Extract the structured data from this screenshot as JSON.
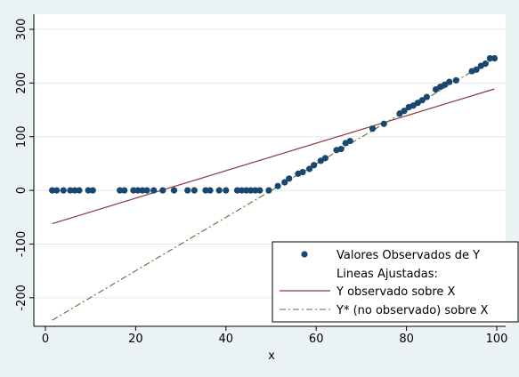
{
  "chart_data": {
    "type": "scatter",
    "xlabel": "x",
    "ylabel": "",
    "xlim": [
      0,
      100
    ],
    "ylim": [
      -250,
      300
    ],
    "x_ticks": [
      0,
      20,
      40,
      60,
      80,
      100
    ],
    "y_ticks": [
      -200,
      -100,
      0,
      100,
      200,
      300
    ],
    "x_tick_labels": [
      "0",
      "20",
      "40",
      "60",
      "80",
      "100"
    ],
    "y_tick_labels": [
      "-200",
      "-100",
      "0",
      "100",
      "200",
      "300"
    ],
    "grid": "horizontal",
    "legend_position": "bottom-right",
    "colors": {
      "background": "#eaf2f3",
      "plot_area": "#ffffff",
      "gridline": "#dfe8ea",
      "scatter": "#1a476f",
      "fit_observed": "#90353b",
      "fit_latent": "#55752f"
    },
    "series": [
      {
        "name": "Valores Observados de Y",
        "kind": "scatter",
        "points": [
          [
            1.5,
            0
          ],
          [
            2.5,
            0
          ],
          [
            4,
            0
          ],
          [
            5.5,
            0
          ],
          [
            6.5,
            0
          ],
          [
            7.5,
            0
          ],
          [
            9.5,
            0
          ],
          [
            10.5,
            0
          ],
          [
            16.5,
            0
          ],
          [
            17.5,
            0
          ],
          [
            19.5,
            0
          ],
          [
            20.5,
            0
          ],
          [
            21.5,
            0
          ],
          [
            22.5,
            0
          ],
          [
            24,
            0
          ],
          [
            26,
            0
          ],
          [
            28.5,
            0
          ],
          [
            31.5,
            0
          ],
          [
            33,
            0
          ],
          [
            35.5,
            0
          ],
          [
            36.5,
            0
          ],
          [
            38.5,
            0
          ],
          [
            40,
            0
          ],
          [
            42.5,
            0
          ],
          [
            43.5,
            0
          ],
          [
            44.5,
            0
          ],
          [
            45.5,
            0
          ],
          [
            46.5,
            0
          ],
          [
            47.5,
            0
          ],
          [
            49.5,
            0
          ],
          [
            51.5,
            8
          ],
          [
            53,
            15
          ],
          [
            54,
            22
          ],
          [
            56,
            31
          ],
          [
            57,
            34
          ],
          [
            58.5,
            40
          ],
          [
            59.5,
            47
          ],
          [
            61,
            55
          ],
          [
            62,
            60
          ],
          [
            64.5,
            75
          ],
          [
            65.5,
            77
          ],
          [
            66.5,
            88
          ],
          [
            67.5,
            92
          ],
          [
            72.5,
            115
          ],
          [
            75,
            124
          ],
          [
            78.5,
            143
          ],
          [
            79.5,
            148
          ],
          [
            80.5,
            155
          ],
          [
            81.5,
            158
          ],
          [
            82.5,
            163
          ],
          [
            83.5,
            168
          ],
          [
            84.5,
            174
          ],
          [
            86.5,
            188
          ],
          [
            87.5,
            193
          ],
          [
            88.5,
            197
          ],
          [
            89.5,
            202
          ],
          [
            91,
            205
          ],
          [
            94.5,
            222
          ],
          [
            95.5,
            225
          ],
          [
            96.5,
            232
          ],
          [
            97.5,
            236
          ],
          [
            98.5,
            246
          ],
          [
            99.5,
            246
          ]
        ]
      },
      {
        "name": "Y observado sobre X",
        "kind": "line",
        "points": [
          [
            1.5,
            -62
          ],
          [
            99.5,
            189
          ]
        ]
      },
      {
        "name": "Y* (no observado) sobre X",
        "kind": "dash-dot",
        "points": [
          [
            1.5,
            -242
          ],
          [
            99.5,
            246
          ]
        ]
      }
    ],
    "legend": {
      "entries": [
        {
          "label": "Valores Observados de Y",
          "kind": "marker"
        },
        {
          "label": "Lineas Ajustadas:",
          "kind": "none"
        },
        {
          "label": "Y observado sobre X",
          "kind": "solid"
        },
        {
          "label": "Y* (no observado) sobre X",
          "kind": "dash-dot"
        }
      ]
    }
  }
}
